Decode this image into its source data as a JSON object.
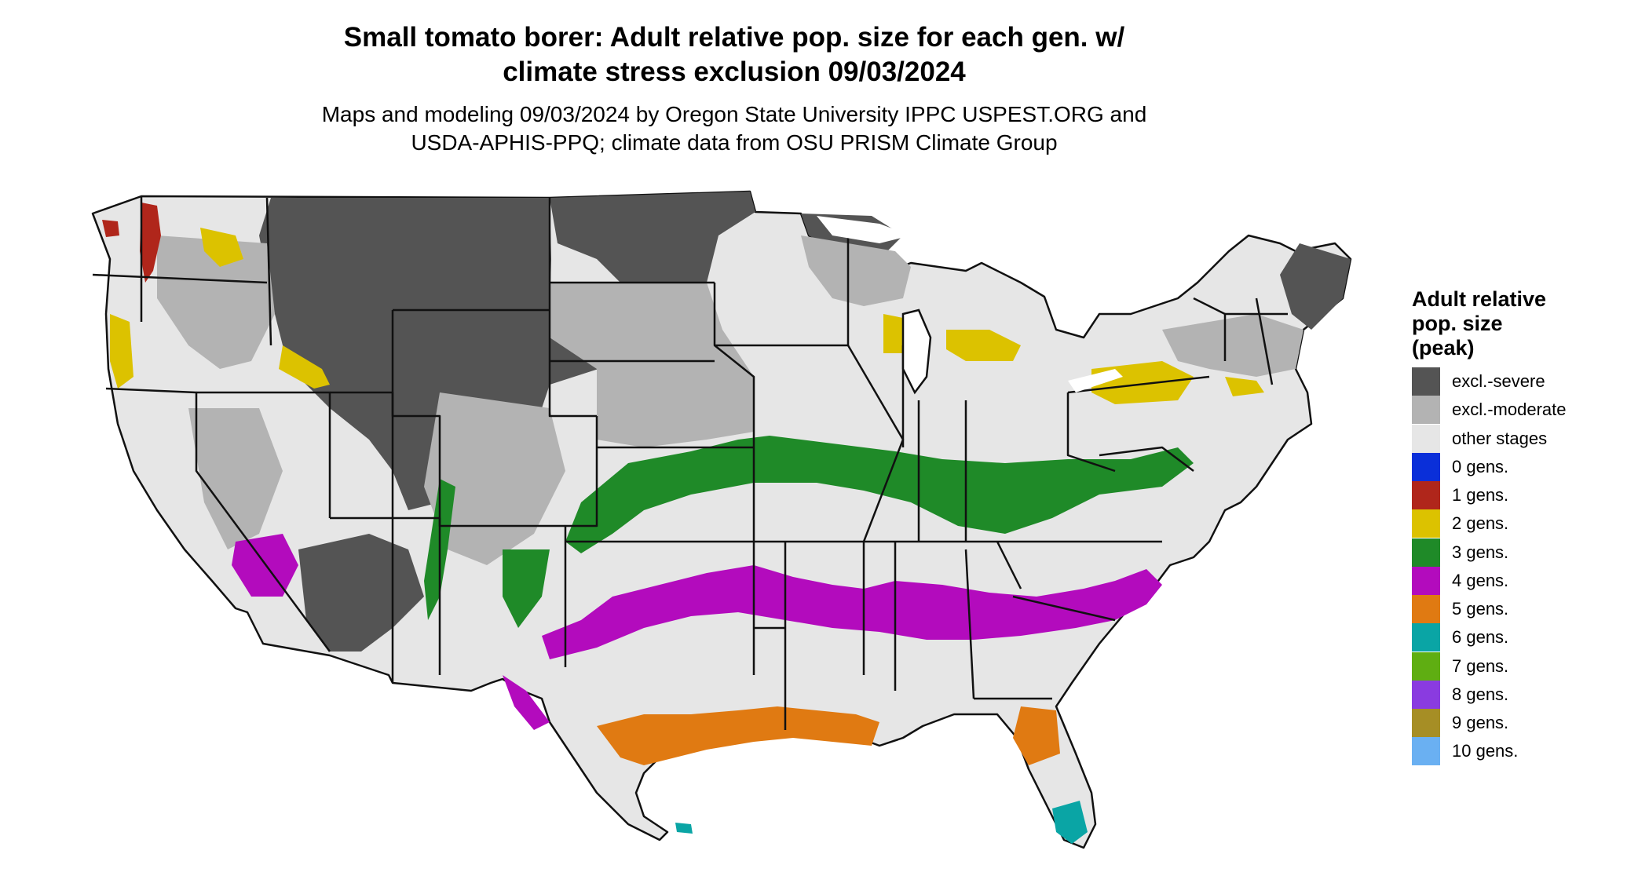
{
  "title_lines": [
    "Small tomato borer: Adult relative pop. size for each gen. w/",
    "climate stress exclusion 09/03/2024"
  ],
  "subtitle_lines": [
    "Maps and modeling 09/03/2024 by Oregon State University IPPC USPEST.ORG and",
    "USDA-APHIS-PPQ; climate data from OSU PRISM Climate Group"
  ],
  "legend": {
    "title_lines": [
      "Adult relative",
      "pop. size",
      "(peak)"
    ],
    "items": [
      {
        "label": "excl.-severe",
        "color": "#545454"
      },
      {
        "label": "excl.-moderate",
        "color": "#b3b3b3"
      },
      {
        "label": "other stages",
        "color": "#e6e6e6"
      },
      {
        "label": "0 gens.",
        "color": "#0a2fd9"
      },
      {
        "label": "1 gens.",
        "color": "#b0261b"
      },
      {
        "label": "2 gens.",
        "color": "#dcc200"
      },
      {
        "label": "3 gens.",
        "color": "#1f8a28"
      },
      {
        "label": "4 gens.",
        "color": "#b30bbd"
      },
      {
        "label": "5 gens.",
        "color": "#e07a12"
      },
      {
        "label": "6 gens.",
        "color": "#0aa5a5"
      },
      {
        "label": "7 gens.",
        "color": "#5fae12"
      },
      {
        "label": "8 gens.",
        "color": "#8a3be0"
      },
      {
        "label": "9 gens.",
        "color": "#a68e25"
      },
      {
        "label": "10 gens.",
        "color": "#6ab0f2"
      }
    ]
  }
}
